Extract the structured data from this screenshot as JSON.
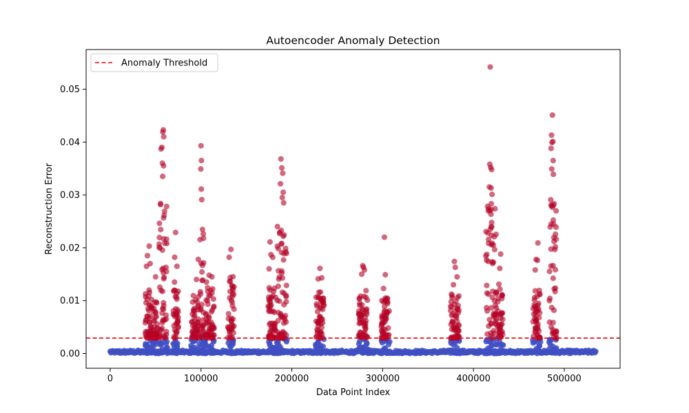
{
  "chart_data": {
    "type": "scatter",
    "title": "Autoencoder Anomaly Detection",
    "xlabel": "Data Point Index",
    "ylabel": "Reconstruction Error",
    "xlim": [
      -26500,
      561500
    ],
    "ylim": [
      -0.0028,
      0.0575
    ],
    "xticks": [
      0,
      100000,
      200000,
      300000,
      400000,
      500000
    ],
    "xtick_labels": [
      "0",
      "100000",
      "200000",
      "300000",
      "400000",
      "500000"
    ],
    "yticks": [
      0.0,
      0.01,
      0.02,
      0.03,
      0.04,
      0.05
    ],
    "ytick_labels": [
      "0.00",
      "0.01",
      "0.02",
      "0.03",
      "0.04",
      "0.05"
    ],
    "grid": false,
    "legend": {
      "position": "top-left",
      "entries": [
        {
          "label": "Anomaly Threshold",
          "style": "dashed-line",
          "color": "#e8000b"
        }
      ]
    },
    "threshold": 0.0029,
    "colors": {
      "normal": "#3f4fc3",
      "anomaly": "#b40426",
      "threshold": "#e8000b"
    },
    "x_max": 535000,
    "baseline_error_max": 0.0006,
    "clusters": [
      {
        "x_start": 38000,
        "x_end": 47000,
        "dense_max": 0.0125,
        "spikes": [
          [
            40000,
            0.0165
          ],
          [
            41000,
            0.0185
          ],
          [
            43000,
            0.0203
          ],
          [
            44000,
            0.017
          ]
        ]
      },
      {
        "x_start": 47000,
        "x_end": 53000,
        "dense_max": 0.011,
        "spikes": [
          [
            50000,
            0.0145
          ]
        ]
      },
      {
        "x_start": 53000,
        "x_end": 63000,
        "dense_max": 0.0295,
        "spikes": [
          [
            56000,
            0.0387
          ],
          [
            57000,
            0.039
          ],
          [
            58000,
            0.0419
          ],
          [
            58500,
            0.0423
          ],
          [
            59000,
            0.041
          ],
          [
            57500,
            0.036
          ],
          [
            58800,
            0.0355
          ],
          [
            57800,
            0.0335
          ]
        ]
      },
      {
        "x_start": 69000,
        "x_end": 76000,
        "dense_max": 0.0145,
        "spikes": [
          [
            71000,
            0.0182
          ],
          [
            72000,
            0.0229
          ],
          [
            73500,
            0.0165
          ]
        ]
      },
      {
        "x_start": 89000,
        "x_end": 98000,
        "dense_max": 0.0115,
        "spikes": [
          [
            95000,
            0.014
          ],
          [
            97000,
            0.0178
          ]
        ]
      },
      {
        "x_start": 98000,
        "x_end": 104000,
        "dense_max": 0.0245,
        "spikes": [
          [
            100000,
            0.0393
          ],
          [
            100500,
            0.0365
          ],
          [
            99800,
            0.0349
          ],
          [
            100300,
            0.0311
          ],
          [
            100800,
            0.0291
          ]
        ]
      },
      {
        "x_start": 104000,
        "x_end": 115000,
        "dense_max": 0.0125,
        "spikes": [
          [
            109000,
            0.0148
          ],
          [
            112000,
            0.0145
          ],
          [
            106000,
            0.0135
          ]
        ]
      },
      {
        "x_start": 129000,
        "x_end": 137000,
        "dense_max": 0.0165,
        "spikes": [
          [
            133000,
            0.0197
          ],
          [
            131000,
            0.0182
          ]
        ]
      },
      {
        "x_start": 173000,
        "x_end": 183000,
        "dense_max": 0.0125,
        "spikes": [
          [
            175000,
            0.016
          ],
          [
            176000,
            0.0211
          ],
          [
            177000,
            0.0187
          ],
          [
            179000,
            0.0182
          ]
        ]
      },
      {
        "x_start": 183000,
        "x_end": 195000,
        "dense_max": 0.0245,
        "spikes": [
          [
            188000,
            0.0368
          ],
          [
            189000,
            0.0351
          ],
          [
            190000,
            0.0341
          ],
          [
            187500,
            0.0321
          ],
          [
            190500,
            0.0305
          ],
          [
            189500,
            0.0295
          ],
          [
            191000,
            0.0285
          ]
        ]
      },
      {
        "x_start": 226000,
        "x_end": 236000,
        "dense_max": 0.0125,
        "spikes": [
          [
            231000,
            0.0161
          ],
          [
            229000,
            0.0141
          ],
          [
            233000,
            0.0143
          ]
        ]
      },
      {
        "x_start": 273000,
        "x_end": 284000,
        "dense_max": 0.0125,
        "spikes": [
          [
            278000,
            0.0166
          ],
          [
            279000,
            0.0163
          ],
          [
            280000,
            0.0158
          ],
          [
            277000,
            0.015
          ]
        ]
      },
      {
        "x_start": 298000,
        "x_end": 308000,
        "dense_max": 0.0105,
        "spikes": [
          [
            302000,
            0.022
          ],
          [
            303000,
            0.0149
          ],
          [
            301000,
            0.0123
          ]
        ]
      },
      {
        "x_start": 374000,
        "x_end": 385000,
        "dense_max": 0.0115,
        "spikes": [
          [
            379000,
            0.0174
          ],
          [
            380000,
            0.0163
          ],
          [
            382000,
            0.0145
          ],
          [
            378000,
            0.013
          ]
        ]
      },
      {
        "x_start": 413000,
        "x_end": 426000,
        "dense_max": 0.0285,
        "spikes": [
          [
            418500,
            0.0542
          ],
          [
            418000,
            0.0358
          ],
          [
            419000,
            0.0352
          ],
          [
            420000,
            0.0348
          ],
          [
            417500,
            0.0315
          ],
          [
            419500,
            0.0313
          ],
          [
            420500,
            0.0301
          ]
        ]
      },
      {
        "x_start": 426000,
        "x_end": 433000,
        "dense_max": 0.0125,
        "spikes": [
          [
            429000,
            0.0161
          ],
          [
            430000,
            0.0188
          ],
          [
            428000,
            0.0131
          ]
        ]
      },
      {
        "x_start": 465000,
        "x_end": 474000,
        "dense_max": 0.0125,
        "spikes": [
          [
            468000,
            0.0158
          ],
          [
            469000,
            0.0178
          ],
          [
            470500,
            0.0176
          ],
          [
            471000,
            0.0209
          ]
        ]
      },
      {
        "x_start": 483000,
        "x_end": 492000,
        "dense_max": 0.0295,
        "spikes": [
          [
            487000,
            0.0451
          ],
          [
            486000,
            0.0413
          ],
          [
            486500,
            0.0399
          ],
          [
            487500,
            0.0401
          ],
          [
            485500,
            0.0388
          ],
          [
            487800,
            0.0365
          ],
          [
            486200,
            0.0349
          ],
          [
            488000,
            0.0339
          ]
        ]
      }
    ]
  }
}
